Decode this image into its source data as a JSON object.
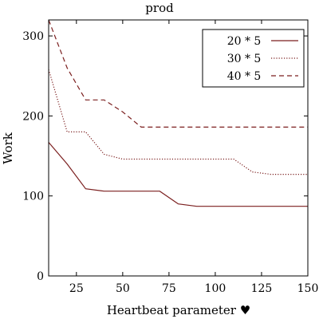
{
  "chart_data": {
    "type": "line",
    "title": "prod",
    "xlabel": "Heartbeat parameter ♥",
    "ylabel": "Work",
    "xlim": [
      10,
      150
    ],
    "ylim": [
      0,
      320
    ],
    "xticks": [
      25,
      50,
      75,
      100,
      125,
      150
    ],
    "yticks": [
      0,
      100,
      200,
      300
    ],
    "grid": false,
    "legend_position": "top-right",
    "series": [
      {
        "name": "20 * 5",
        "style": "solid",
        "color": "#7b1f1f",
        "x": [
          10,
          20,
          30,
          40,
          50,
          60,
          70,
          80,
          90,
          100,
          110,
          120,
          130,
          140,
          150
        ],
        "y": [
          167,
          140,
          109,
          106,
          106,
          106,
          106,
          90,
          87,
          87,
          87,
          87,
          87,
          87,
          87
        ]
      },
      {
        "name": "30 * 5",
        "style": "dotted",
        "color": "#7b1f1f",
        "x": [
          10,
          20,
          30,
          40,
          50,
          60,
          70,
          80,
          90,
          100,
          110,
          120,
          130,
          140,
          150
        ],
        "y": [
          258,
          180,
          180,
          152,
          146,
          146,
          146,
          146,
          146,
          146,
          146,
          130,
          127,
          127,
          127
        ]
      },
      {
        "name": "40 * 5",
        "style": "dashed",
        "color": "#7b1f1f",
        "x": [
          10,
          20,
          30,
          40,
          50,
          60,
          70,
          80,
          90,
          100,
          110,
          120,
          130,
          140,
          150
        ],
        "y": [
          320,
          260,
          220,
          220,
          205,
          186,
          186,
          186,
          186,
          186,
          186,
          186,
          186,
          186,
          186
        ]
      }
    ]
  }
}
